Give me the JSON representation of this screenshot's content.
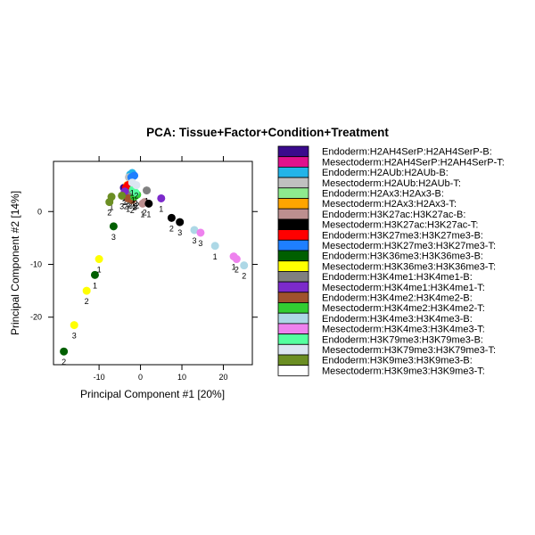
{
  "chart_data": {
    "type": "scatter",
    "title": "PCA: Tissue+Factor+Condition+Treatment",
    "xlabel": "Principal Component #1 [20%]",
    "ylabel": "Principal Component #2 [14%]",
    "xlim": [
      -21,
      27
    ],
    "ylim": [
      -29,
      9.5
    ],
    "x_ticks": [
      -10,
      0,
      10,
      20
    ],
    "y_ticks": [
      -20,
      -10,
      0
    ],
    "grid": false,
    "legend_position": "right",
    "series": [
      {
        "name": "Endoderm:H2AH4SerP:H2AH4SerP-B:",
        "color": "#3A0A8C",
        "points": [
          {
            "x": -4,
            "y": 4.5,
            "label": "1"
          },
          {
            "x": -3.5,
            "y": 3.0,
            "label": "2"
          }
        ]
      },
      {
        "name": "Mesectoderm:H2AH4SerP:H2AH4SerP-T:",
        "color": "#E0118C",
        "points": [
          {
            "x": -3,
            "y": 4.0,
            "label": "1"
          },
          {
            "x": -2.5,
            "y": 3.2,
            "label": "2"
          }
        ]
      },
      {
        "name": "Endoderm:H2AUb:H2AUb-B:",
        "color": "#22B4E8",
        "points": [
          {
            "x": -2.5,
            "y": 7.0,
            "label": "1"
          },
          {
            "x": -2,
            "y": 7.3,
            "label": "2"
          }
        ]
      },
      {
        "name": "Mesectoderm:H2AUb:H2AUb-T:",
        "color": "#C0C0C0",
        "points": [
          {
            "x": -2.8,
            "y": 6.5,
            "label": "1"
          },
          {
            "x": -2.2,
            "y": 6.0,
            "label": "2"
          }
        ]
      },
      {
        "name": "Endoderm:H2Ax3:H2Ax3-B:",
        "color": "#8EEB8E",
        "points": [
          {
            "x": -1.8,
            "y": 3.5,
            "label": "1"
          },
          {
            "x": -1.2,
            "y": 3.0,
            "label": "2"
          }
        ]
      },
      {
        "name": "Mesectoderm:H2Ax3:H2Ax3-T:",
        "color": "#FFA500",
        "points": [
          {
            "x": -3.2,
            "y": 5.0,
            "label": "1"
          },
          {
            "x": -2.6,
            "y": 4.8,
            "label": "2"
          }
        ]
      },
      {
        "name": "Endoderm:H3K27ac:H3K27ac-B:",
        "color": "#BC8F8F",
        "points": [
          {
            "x": 0.5,
            "y": 1.5,
            "label": "1"
          },
          {
            "x": 1.0,
            "y": 1.8,
            "label": "2"
          }
        ]
      },
      {
        "name": "Mesectoderm:H3K27ac:H3K27ac-T:",
        "color": "#000000",
        "points": [
          {
            "x": 7.5,
            "y": -1.2,
            "label": "2"
          },
          {
            "x": 9.5,
            "y": -2.0,
            "label": "3"
          },
          {
            "x": 2.0,
            "y": 1.5,
            "label": "1"
          }
        ]
      },
      {
        "name": "Endoderm:H3K27me3:H3K27me3-B:",
        "color": "#FF0000",
        "points": [
          {
            "x": -3.5,
            "y": 4.5,
            "label": "1"
          },
          {
            "x": -3.0,
            "y": 5.0,
            "label": "2"
          }
        ]
      },
      {
        "name": "Mesectoderm:H3K27me3:H3K27me3-T:",
        "color": "#1E7FFF",
        "points": [
          {
            "x": -2.2,
            "y": 6.5,
            "label": "1"
          },
          {
            "x": -1.5,
            "y": 6.8,
            "label": "2"
          }
        ]
      },
      {
        "name": "Endoderm:H3K36me3:H3K36me3-B:",
        "color": "#005F00",
        "points": [
          {
            "x": -11,
            "y": -12.0,
            "label": "1"
          },
          {
            "x": -18.5,
            "y": -26.5,
            "label": "2"
          },
          {
            "x": -6.5,
            "y": -2.8,
            "label": "3"
          }
        ]
      },
      {
        "name": "Mesectoderm:H3K36me3:H3K36me3-T:",
        "color": "#FFFF00",
        "points": [
          {
            "x": -10,
            "y": -9.0,
            "label": "1"
          },
          {
            "x": -13,
            "y": -15.0,
            "label": "2"
          },
          {
            "x": -16,
            "y": -21.5,
            "label": "3"
          }
        ]
      },
      {
        "name": "Endoderm:H3K4me1:H3K4me1-B:",
        "color": "#808080",
        "points": [
          {
            "x": 1.5,
            "y": 4.0,
            "label": "1"
          },
          {
            "x": -2.5,
            "y": 3.5,
            "label": "2"
          }
        ]
      },
      {
        "name": "Mesectoderm:H3K4me1:H3K4me1-T:",
        "color": "#7C2ACB",
        "points": [
          {
            "x": 5.0,
            "y": 2.5,
            "label": "1"
          },
          {
            "x": -3.8,
            "y": 3.8,
            "label": "2"
          }
        ]
      },
      {
        "name": "Endoderm:H3K4me2:H3K4me2-B:",
        "color": "#A0522D",
        "points": [
          {
            "x": -3.0,
            "y": 2.5,
            "label": "1"
          },
          {
            "x": -2.0,
            "y": 2.2,
            "label": "2"
          }
        ]
      },
      {
        "name": "Mesectoderm:H3K4me2:H3K4me2-T:",
        "color": "#32CD32",
        "points": [
          {
            "x": -1.5,
            "y": 2.8,
            "label": "1"
          },
          {
            "x": -0.8,
            "y": 3.2,
            "label": "2"
          }
        ]
      },
      {
        "name": "Endoderm:H3K4me3:H3K4me3-B:",
        "color": "#ADD8E6",
        "points": [
          {
            "x": 18,
            "y": -6.5,
            "label": "1"
          },
          {
            "x": 25,
            "y": -10.2,
            "label": "2"
          },
          {
            "x": 13,
            "y": -3.5,
            "label": "3"
          }
        ]
      },
      {
        "name": "Mesectoderm:H3K4me3:H3K4me3-T:",
        "color": "#EE82EE",
        "points": [
          {
            "x": 22.5,
            "y": -8.5,
            "label": "1"
          },
          {
            "x": 23.2,
            "y": -9.0,
            "label": "2"
          },
          {
            "x": 14.5,
            "y": -4.0,
            "label": "3"
          }
        ]
      },
      {
        "name": "Endoderm:H3K79me3:H3K79me3-B:",
        "color": "#54FF9F",
        "points": [
          {
            "x": -1.8,
            "y": 4.2,
            "label": "1"
          },
          {
            "x": -1.2,
            "y": 3.6,
            "label": "2"
          }
        ]
      },
      {
        "name": "Mesectoderm:H3K79me3:H3K79me3-T:",
        "color": "#DCE6F2",
        "points": [
          {
            "x": -2.0,
            "y": 5.5,
            "label": "1"
          },
          {
            "x": -1.0,
            "y": 5.0,
            "label": "2"
          }
        ]
      },
      {
        "name": "Endoderm:H3K9me3:H3K9me3-B:",
        "color": "#6B8E23",
        "points": [
          {
            "x": -7.0,
            "y": 2.8,
            "label": "1"
          },
          {
            "x": -7.5,
            "y": 1.8,
            "label": "2"
          },
          {
            "x": -4.5,
            "y": 3.0,
            "label": "3"
          }
        ]
      },
      {
        "name": "Mesectoderm:H3K9me3:H3K9me3-T:",
        "color": "#FFFFFF",
        "points": []
      }
    ]
  }
}
